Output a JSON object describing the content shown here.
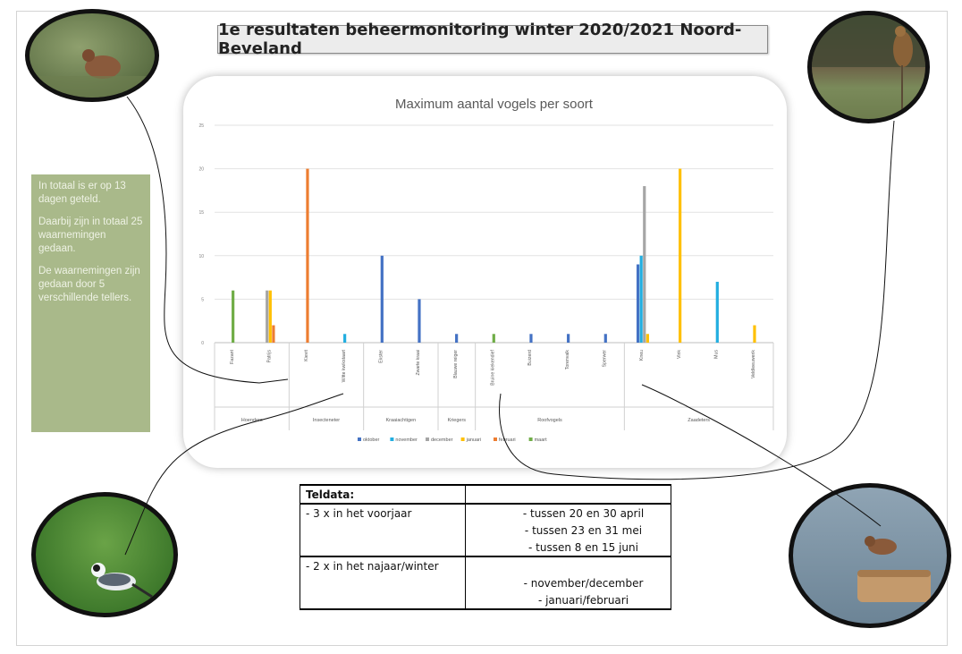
{
  "banner": {
    "title": "1e resultaten beheermonitoring winter 2020/2021 Noord-Beveland"
  },
  "note": {
    "paragraphs": [
      "In totaal is er op 13 dagen geteld.",
      "Daarbij zijn in totaal 25 waarnemingen gedaan.",
      "De waarnemingen zijn gedaan door 5 verschillende tellers."
    ]
  },
  "chart_data": {
    "type": "bar",
    "title": "Maximum aantal vogels per soort",
    "ylim": [
      0,
      25
    ],
    "yticks": [
      0,
      5,
      10,
      15,
      20,
      25
    ],
    "grid": true,
    "legend_position": "bottom",
    "series": [
      {
        "name": "oktober",
        "color": "#4472c4"
      },
      {
        "name": "november",
        "color": "#22aee0"
      },
      {
        "name": "december",
        "color": "#a5a5a5"
      },
      {
        "name": "januari",
        "color": "#ffc000"
      },
      {
        "name": "februari",
        "color": "#ed7d31"
      },
      {
        "name": "maart",
        "color": "#70ad47"
      }
    ],
    "groups": [
      {
        "name": "Hoenders",
        "categories": [
          {
            "label": "Fazant",
            "values": [
              0,
              0,
              0,
              0,
              0,
              6
            ]
          },
          {
            "label": "Patrijs",
            "values": [
              0,
              0,
              6,
              6,
              2,
              0
            ]
          }
        ]
      },
      {
        "name": "Insecteneter",
        "categories": [
          {
            "label": "Kievit",
            "values": [
              0,
              0,
              0,
              0,
              20,
              0
            ]
          },
          {
            "label": "Witte kwikstaart",
            "values": [
              0,
              1,
              0,
              0,
              0,
              0
            ]
          }
        ]
      },
      {
        "name": "Kraaiachtigen",
        "categories": [
          {
            "label": "Ekster",
            "values": [
              10,
              0,
              0,
              0,
              0,
              0
            ]
          },
          {
            "label": "Zwarte kraai",
            "values": [
              5,
              0,
              0,
              0,
              0,
              0
            ]
          }
        ]
      },
      {
        "name": "Kriegers",
        "categories": [
          {
            "label": "Blauwe reiger",
            "values": [
              1,
              0,
              0,
              0,
              0,
              0
            ]
          }
        ]
      },
      {
        "name": "Roofvogels",
        "categories": [
          {
            "label": "Bruine kiekendief",
            "values": [
              0,
              0,
              0,
              0,
              0,
              1
            ]
          },
          {
            "label": "Buizerd",
            "values": [
              1,
              0,
              0,
              0,
              0,
              0
            ]
          },
          {
            "label": "Torenvalk",
            "values": [
              1,
              0,
              0,
              0,
              0,
              0
            ]
          },
          {
            "label": "Sperwer",
            "values": [
              1,
              0,
              0,
              0,
              0,
              0
            ]
          }
        ]
      },
      {
        "name": "Zaadeters",
        "categories": [
          {
            "label": "Kneu",
            "values": [
              9,
              10,
              18,
              1,
              0,
              0
            ]
          },
          {
            "label": "Vink",
            "values": [
              0,
              0,
              0,
              20,
              0,
              0
            ]
          },
          {
            "label": "Mus",
            "values": [
              0,
              7,
              0,
              0,
              0,
              0
            ]
          },
          {
            "label": "Veldleeuwerik",
            "values": [
              0,
              0,
              0,
              2,
              0,
              0
            ]
          }
        ]
      }
    ]
  },
  "teldata": {
    "header": "Teldata:",
    "rows": [
      {
        "left": "- 3 x in het voorjaar",
        "right": "- tussen 20 en 30 april"
      },
      {
        "left": "",
        "right": "- tussen 23 en 31 mei"
      },
      {
        "left": "",
        "right": "- tussen 8 en 15 juni"
      },
      {
        "left": "- 2 x in het najaar/winter",
        "right": ""
      },
      {
        "left": "",
        "right": "- november/december"
      },
      {
        "left": "",
        "right": "- januari/februari"
      }
    ]
  }
}
